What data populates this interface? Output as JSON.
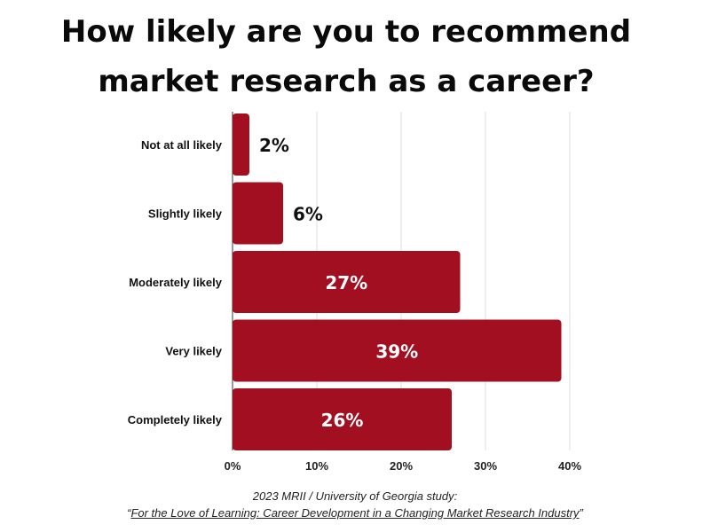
{
  "title_lines": [
    "How likely are you to recommend",
    "market research as a career?"
  ],
  "source": {
    "line1": "2023 MRII / University of Georgia study:",
    "quote_open": "“",
    "publication": "For the Love of Learning: Career Development in a Changing Market Research Industry",
    "quote_close": "”"
  },
  "colors": {
    "bar": "#a10f21",
    "grid": "#dddddd",
    "axis": "#333333",
    "label_out": "#111111",
    "label_in": "#ffffff"
  },
  "chart_data": {
    "type": "bar",
    "orientation": "horizontal",
    "title": "How likely are you to recommend market research as a career?",
    "categories": [
      "Not at all likely",
      "Slightly likely",
      "Moderately likely",
      "Very likely",
      "Completely likely"
    ],
    "values": [
      2,
      6,
      27,
      39,
      26
    ],
    "data_labels": [
      "2%",
      "6%",
      "27%",
      "39%",
      "26%"
    ],
    "xlim": [
      0,
      40
    ],
    "xticks": [
      0,
      10,
      20,
      30,
      40
    ],
    "xtick_labels": [
      "0%",
      "10%",
      "20%",
      "30%",
      "40%"
    ],
    "xlabel": "",
    "ylabel": "",
    "grid": true
  }
}
